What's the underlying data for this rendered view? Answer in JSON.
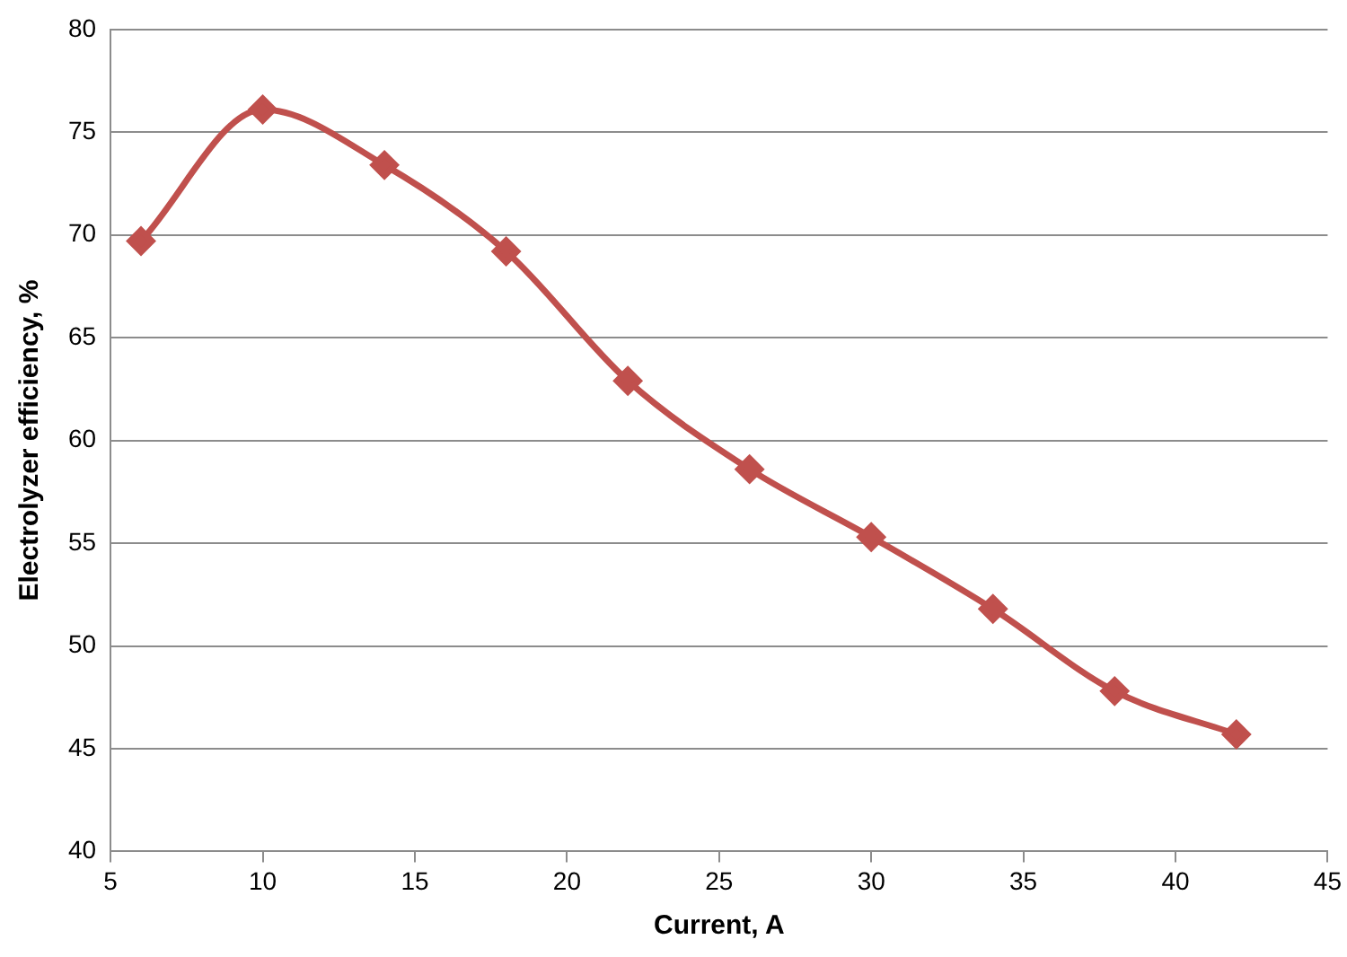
{
  "chart_data": {
    "type": "line",
    "xlabel": "Current, A",
    "ylabel": "Electrolyzer efficiency, %",
    "x": [
      6,
      10,
      14,
      18,
      22,
      26,
      30,
      34,
      38,
      42
    ],
    "series": [
      {
        "color": "#c0504d",
        "values": [
          69.7,
          76.1,
          73.4,
          69.2,
          62.9,
          58.6,
          55.3,
          51.8,
          47.8,
          45.7
        ]
      }
    ],
    "xlim": [
      5,
      45
    ],
    "xticks": [
      5,
      10,
      15,
      20,
      25,
      30,
      35,
      40,
      45
    ],
    "ylim": [
      40,
      80
    ],
    "yticks": [
      40,
      45,
      50,
      55,
      60,
      65,
      70,
      75,
      80
    ],
    "grid": "y",
    "legend": false,
    "marker": "diamond",
    "line_style": "solid"
  }
}
